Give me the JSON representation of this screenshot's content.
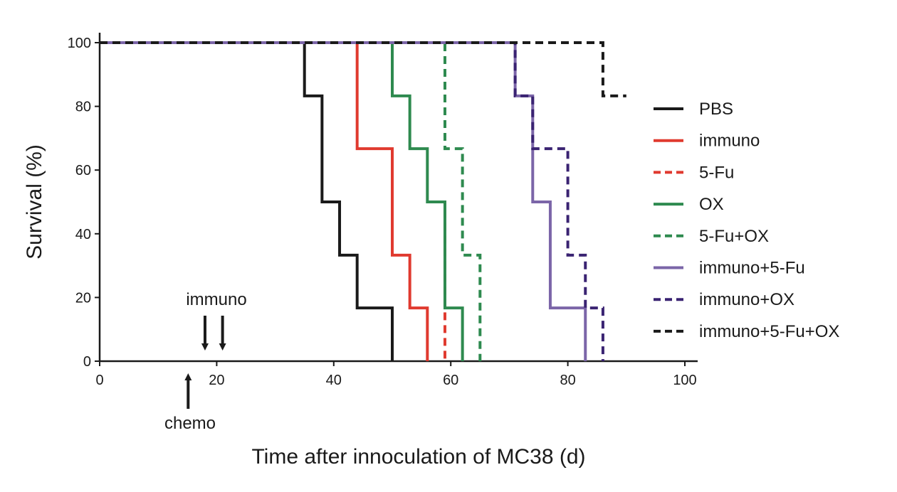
{
  "chart_data": {
    "type": "line",
    "title": "",
    "xlabel": "Time after innoculation of MC38 (d)",
    "ylabel": "Survival (%)",
    "xlim": [
      0,
      100
    ],
    "ylim": [
      0,
      100
    ],
    "xticks": [
      "0",
      "20",
      "40",
      "60",
      "80",
      "100"
    ],
    "yticks": [
      "0",
      "20",
      "40",
      "60",
      "80",
      "100"
    ],
    "grid": false,
    "legend_position": "right",
    "step": true,
    "series": [
      {
        "name": "PBS",
        "color": "#1a1a1a",
        "dash": false,
        "x": [
          0,
          35,
          38,
          41,
          44,
          50
        ],
        "y": [
          100,
          83.3,
          50,
          33.3,
          16.7,
          0
        ]
      },
      {
        "name": "immuno",
        "color": "#e03a2f",
        "dash": false,
        "x": [
          0,
          44,
          50,
          53,
          56
        ],
        "y": [
          100,
          66.7,
          33.3,
          16.7,
          0
        ]
      },
      {
        "name": "5-Fu",
        "color": "#e03a2f",
        "dash": true,
        "x": [
          56,
          59
        ],
        "y": [
          50,
          0
        ]
      },
      {
        "name": "OX",
        "color": "#2e8a4f",
        "dash": false,
        "x": [
          0,
          50,
          53,
          56,
          59,
          62
        ],
        "y": [
          100,
          83.3,
          66.7,
          50,
          16.7,
          0
        ]
      },
      {
        "name": "5-Fu+OX",
        "color": "#2e8a4f",
        "dash": true,
        "x": [
          0,
          59,
          62,
          65
        ],
        "y": [
          100,
          66.7,
          33.3,
          0
        ]
      },
      {
        "name": "immuno+5-Fu",
        "color": "#7b65a8",
        "dash": false,
        "x": [
          0,
          71,
          74,
          77,
          83
        ],
        "y": [
          100,
          83.3,
          50,
          16.7,
          0
        ]
      },
      {
        "name": "immuno+OX",
        "color": "#3a2372",
        "dash": true,
        "x": [
          0,
          71,
          74,
          80,
          83,
          86
        ],
        "y": [
          100,
          83.3,
          66.7,
          33.3,
          16.7,
          0
        ]
      },
      {
        "name": "immuno+5-Fu+OX",
        "color": "#1a1a1a",
        "dash": true,
        "x": [
          0,
          86,
          90
        ],
        "y": [
          100,
          83.3,
          83.3
        ]
      }
    ],
    "annotations": [
      {
        "text": "immuno",
        "arrows_at_x": [
          18,
          21
        ]
      },
      {
        "text": "chemo",
        "arrows_at_x": [
          15
        ]
      }
    ]
  }
}
